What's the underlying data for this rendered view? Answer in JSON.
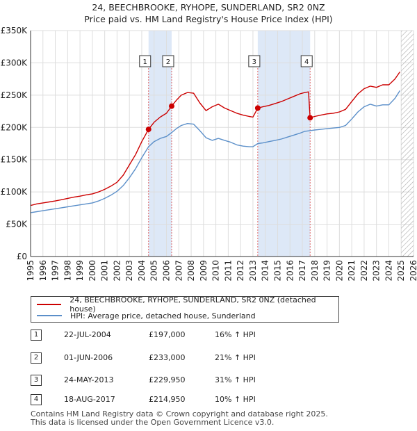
{
  "title_line1": "24, BEECHBROOKE, RYHOPE, SUNDERLAND, SR2 0NZ",
  "title_line2": "Price paid vs. HM Land Registry's House Price Index (HPI)",
  "chart_data": {
    "type": "line",
    "title": "24, BEECHBROOKE, RYHOPE, SUNDERLAND, SR2 0NZ — Price paid vs. HM Land Registry's House Price Index (HPI)",
    "xlim": [
      1995,
      2026
    ],
    "ylim": [
      0,
      350000
    ],
    "x_ticks": [
      "1995",
      "1996",
      "1997",
      "1998",
      "1999",
      "2000",
      "2001",
      "2002",
      "2003",
      "2004",
      "2005",
      "2006",
      "2007",
      "2008",
      "2009",
      "2010",
      "2011",
      "2012",
      "2013",
      "2014",
      "2015",
      "2016",
      "2017",
      "2018",
      "2019",
      "2020",
      "2021",
      "2022",
      "2023",
      "2024",
      "2025",
      "2026"
    ],
    "y_ticks": [
      {
        "value": 0,
        "label": "£0"
      },
      {
        "value": 50000,
        "label": "£50K"
      },
      {
        "value": 100000,
        "label": "£100K"
      },
      {
        "value": 150000,
        "label": "£150K"
      },
      {
        "value": 200000,
        "label": "£200K"
      },
      {
        "value": 250000,
        "label": "£250K"
      },
      {
        "value": 300000,
        "label": "£300K"
      },
      {
        "value": 350000,
        "label": "£350K"
      }
    ],
    "grid": true,
    "forecast_start": 2025.0,
    "colors": {
      "property": "#cc0000",
      "hpi": "#5b8fc9",
      "highlight": "#dde8f7",
      "grid": "#dddddd"
    },
    "highlight_periods": [
      [
        2004.55,
        2006.42
      ],
      [
        2013.39,
        2017.63
      ]
    ],
    "sales_markers": [
      {
        "label": "1",
        "x": 2004.55,
        "y": 197000
      },
      {
        "label": "2",
        "x": 2006.42,
        "y": 233000
      },
      {
        "label": "3",
        "x": 2013.39,
        "y": 229950
      },
      {
        "label": "4",
        "x": 2017.63,
        "y": 214950
      }
    ],
    "series": [
      {
        "name": "24, BEECHBROOKE, RYHOPE, SUNDERLAND, SR2 0NZ (detached house)",
        "points": [
          [
            1995.0,
            79000
          ],
          [
            1995.5,
            81500
          ],
          [
            1996.0,
            83000
          ],
          [
            1996.5,
            84500
          ],
          [
            1997.0,
            86000
          ],
          [
            1997.5,
            88000
          ],
          [
            1998.0,
            90000
          ],
          [
            1998.5,
            92000
          ],
          [
            1999.0,
            93500
          ],
          [
            1999.5,
            95500
          ],
          [
            2000.0,
            97000
          ],
          [
            2000.5,
            100000
          ],
          [
            2001.0,
            104000
          ],
          [
            2001.5,
            109000
          ],
          [
            2002.0,
            115000
          ],
          [
            2002.5,
            126000
          ],
          [
            2003.0,
            142000
          ],
          [
            2003.5,
            158000
          ],
          [
            2004.0,
            178000
          ],
          [
            2004.55,
            197000
          ],
          [
            2005.0,
            208000
          ],
          [
            2005.5,
            216000
          ],
          [
            2006.0,
            222000
          ],
          [
            2006.42,
            233000
          ],
          [
            2006.8,
            242000
          ],
          [
            2007.2,
            250000
          ],
          [
            2007.7,
            254000
          ],
          [
            2008.2,
            253000
          ],
          [
            2008.7,
            238000
          ],
          [
            2009.2,
            226000
          ],
          [
            2009.7,
            232000
          ],
          [
            2010.2,
            236000
          ],
          [
            2010.7,
            230000
          ],
          [
            2011.2,
            226000
          ],
          [
            2011.7,
            222000
          ],
          [
            2012.2,
            219000
          ],
          [
            2012.7,
            217000
          ],
          [
            2013.0,
            216000
          ],
          [
            2013.39,
            229950
          ],
          [
            2013.8,
            232000
          ],
          [
            2014.3,
            234000
          ],
          [
            2014.8,
            237000
          ],
          [
            2015.3,
            240000
          ],
          [
            2015.8,
            244000
          ],
          [
            2016.3,
            248000
          ],
          [
            2016.8,
            252000
          ],
          [
            2017.2,
            254000
          ],
          [
            2017.5,
            255000
          ],
          [
            2017.63,
            214950
          ],
          [
            2018.0,
            217000
          ],
          [
            2018.5,
            219000
          ],
          [
            2019.0,
            221000
          ],
          [
            2019.5,
            222000
          ],
          [
            2020.0,
            224000
          ],
          [
            2020.5,
            228000
          ],
          [
            2021.0,
            240000
          ],
          [
            2021.5,
            252000
          ],
          [
            2022.0,
            260000
          ],
          [
            2022.5,
            264000
          ],
          [
            2023.0,
            262000
          ],
          [
            2023.5,
            266000
          ],
          [
            2024.0,
            266000
          ],
          [
            2024.5,
            275000
          ],
          [
            2024.9,
            286000
          ]
        ]
      },
      {
        "name": "HPI: Average price, detached house, Sunderland",
        "points": [
          [
            1995.0,
            68000
          ],
          [
            1995.5,
            69500
          ],
          [
            1996.0,
            71000
          ],
          [
            1996.5,
            72500
          ],
          [
            1997.0,
            74000
          ],
          [
            1997.5,
            75500
          ],
          [
            1998.0,
            77000
          ],
          [
            1998.5,
            78500
          ],
          [
            1999.0,
            80000
          ],
          [
            1999.5,
            81500
          ],
          [
            2000.0,
            83000
          ],
          [
            2000.5,
            86000
          ],
          [
            2001.0,
            90000
          ],
          [
            2001.5,
            95000
          ],
          [
            2002.0,
            101000
          ],
          [
            2002.5,
            110000
          ],
          [
            2003.0,
            122000
          ],
          [
            2003.5,
            136000
          ],
          [
            2004.0,
            153000
          ],
          [
            2004.55,
            170000
          ],
          [
            2005.0,
            178000
          ],
          [
            2005.5,
            183000
          ],
          [
            2006.0,
            186000
          ],
          [
            2006.42,
            192000
          ],
          [
            2006.8,
            198000
          ],
          [
            2007.2,
            203000
          ],
          [
            2007.7,
            206000
          ],
          [
            2008.2,
            205000
          ],
          [
            2008.7,
            195000
          ],
          [
            2009.2,
            184000
          ],
          [
            2009.7,
            180000
          ],
          [
            2010.2,
            183000
          ],
          [
            2010.7,
            180000
          ],
          [
            2011.2,
            177000
          ],
          [
            2011.7,
            173000
          ],
          [
            2012.2,
            171000
          ],
          [
            2012.7,
            170000
          ],
          [
            2013.0,
            170000
          ],
          [
            2013.39,
            175000
          ],
          [
            2013.8,
            176000
          ],
          [
            2014.3,
            178000
          ],
          [
            2014.8,
            180000
          ],
          [
            2015.3,
            182000
          ],
          [
            2015.8,
            185000
          ],
          [
            2016.3,
            188000
          ],
          [
            2016.8,
            191000
          ],
          [
            2017.2,
            194000
          ],
          [
            2017.63,
            195000
          ],
          [
            2018.0,
            196000
          ],
          [
            2018.5,
            197000
          ],
          [
            2019.0,
            198000
          ],
          [
            2019.5,
            199000
          ],
          [
            2020.0,
            200000
          ],
          [
            2020.5,
            203000
          ],
          [
            2021.0,
            213000
          ],
          [
            2021.5,
            224000
          ],
          [
            2022.0,
            232000
          ],
          [
            2022.5,
            236000
          ],
          [
            2023.0,
            233000
          ],
          [
            2023.5,
            235000
          ],
          [
            2024.0,
            235000
          ],
          [
            2024.5,
            245000
          ],
          [
            2024.9,
            257000
          ]
        ]
      }
    ]
  },
  "legend": {
    "property_label": "24, BEECHBROOKE, RYHOPE, SUNDERLAND, SR2 0NZ (detached house)",
    "hpi_label": "HPI: Average price, detached house, Sunderland"
  },
  "sales": [
    {
      "num": "1",
      "date": "22-JUL-2004",
      "price": "£197,000",
      "hpi": "16% ↑ HPI"
    },
    {
      "num": "2",
      "date": "01-JUN-2006",
      "price": "£233,000",
      "hpi": "21% ↑ HPI"
    },
    {
      "num": "3",
      "date": "24-MAY-2013",
      "price": "£229,950",
      "hpi": "31% ↑ HPI"
    },
    {
      "num": "4",
      "date": "18-AUG-2017",
      "price": "£214,950",
      "hpi": "10% ↑ HPI"
    }
  ],
  "footer_line1": "Contains HM Land Registry data © Crown copyright and database right 2025.",
  "footer_line2": "This data is licensed under the Open Government Licence v3.0."
}
